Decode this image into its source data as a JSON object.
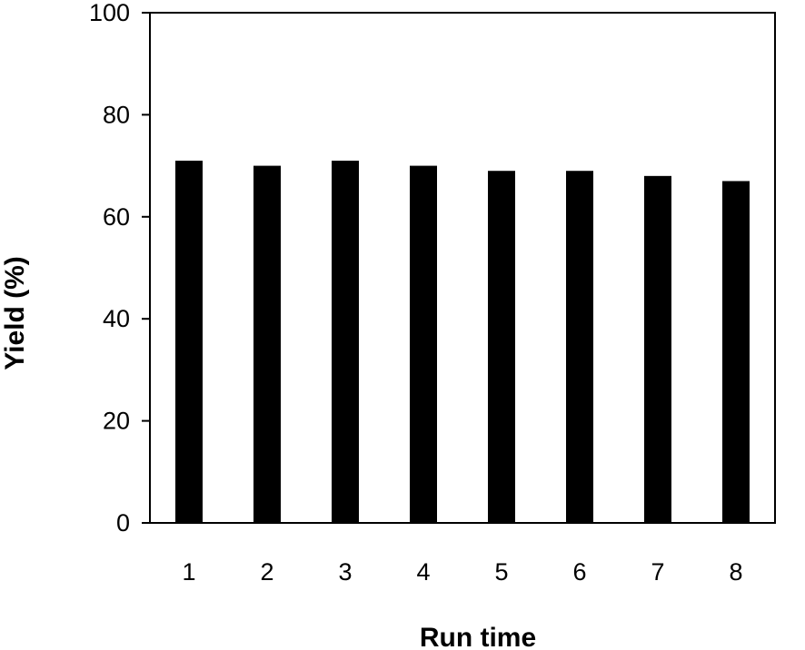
{
  "chart_data": {
    "type": "bar",
    "title": "",
    "xlabel": "Run time",
    "ylabel": "Yield (%)",
    "categories": [
      "1",
      "2",
      "3",
      "4",
      "5",
      "6",
      "7",
      "8"
    ],
    "values": [
      71,
      70,
      71,
      70,
      69,
      69,
      68,
      67
    ],
    "ylim": [
      0,
      100
    ],
    "yticks": [
      "0",
      "20",
      "40",
      "60",
      "80",
      "100"
    ],
    "bar_color": "#000000",
    "grid": false,
    "legend": "none"
  }
}
